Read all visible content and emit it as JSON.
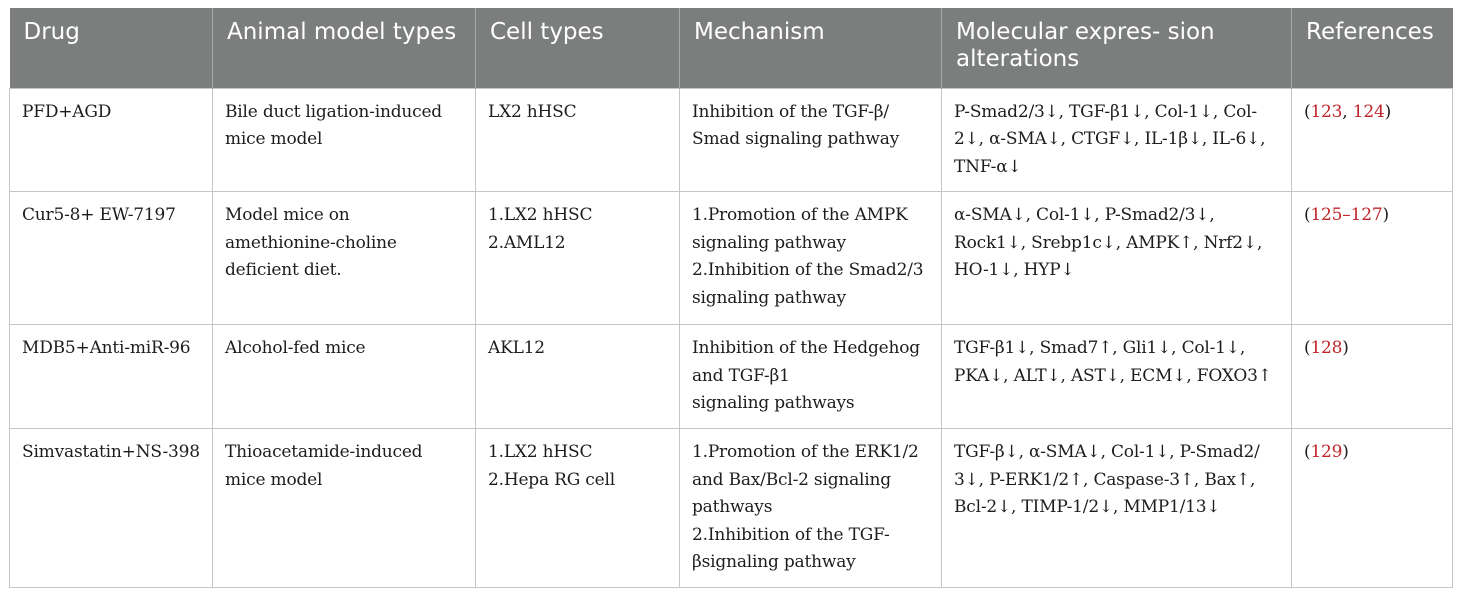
{
  "table": {
    "headers": [
      [
        "Drug"
      ],
      [
        "Animal",
        "model types"
      ],
      [
        "Cell types"
      ],
      [
        "Mechanism"
      ],
      [
        "Molecular expres-",
        "sion alterations"
      ],
      [
        "References"
      ]
    ],
    "rows": [
      {
        "drug": [
          "PFD+AGD"
        ],
        "animal": [
          "Bile duct ligation-induced",
          "mice model"
        ],
        "cell": [
          "LX2 hHSC"
        ],
        "mechanism": [
          "Inhibition of the TGF-β/",
          "Smad signaling pathway"
        ],
        "molecular": [
          "P-Smad2/3↓, TGF-β1↓, Col-1↓, Col-",
          "2↓, α-SMA↓, CTGF↓, IL-1β↓, IL-6↓,",
          "TNF-α↓"
        ],
        "refs": {
          "open": "(",
          "links": [
            "123",
            "124"
          ],
          "sep": ", ",
          "close": ")"
        }
      },
      {
        "drug": [
          "Cur5-8+ EW-7197"
        ],
        "animal": [
          "Model mice on",
          "amethionine-choline",
          "deficient diet."
        ],
        "cell": [
          "1.LX2 hHSC",
          "2.AML12"
        ],
        "mechanism": [
          "1.Promotion of the AMPK",
          "signaling pathway",
          "2.Inhibition of the Smad2/3",
          "signaling pathway"
        ],
        "molecular": [
          "α-SMA↓, Col-1↓, P-Smad2/3↓,",
          "Rock1↓, Srebp1c↓, AMPK↑, Nrf2↓,",
          "HO-1↓, HYP↓"
        ],
        "refs": {
          "open": "(",
          "links": [
            "125–127"
          ],
          "sep": "",
          "close": ")"
        }
      },
      {
        "drug": [
          "MDB5+Anti-miR-96"
        ],
        "animal": [
          "Alcohol-fed mice"
        ],
        "cell": [
          "AKL12"
        ],
        "mechanism": [
          "Inhibition of the Hedgehog",
          "and TGF-β1",
          "signaling pathways"
        ],
        "molecular": [
          "TGF-β1↓, Smad7↑, Gli1↓, Col-1↓,",
          "PKA↓, ALT↓, AST↓, ECM↓, FOXO3↑"
        ],
        "refs": {
          "open": "(",
          "links": [
            "128"
          ],
          "sep": "",
          "close": ")"
        }
      },
      {
        "drug": [
          "Simvastatin+NS-398"
        ],
        "animal": [
          "Thioacetamide-induced",
          "mice model"
        ],
        "cell": [
          "1.LX2 hHSC",
          "2.Hepa RG cell"
        ],
        "mechanism": [
          "1.Promotion of the ERK1/2",
          "and Bax/Bcl-2 signaling",
          "pathways",
          "2.Inhibition of the TGF-",
          "βsignaling pathway"
        ],
        "molecular": [
          "TGF-β↓, α-SMA↓, Col-1↓, P-Smad2/",
          "3↓, P-ERK1/2↑, Caspase-3↑, Bax↑,",
          "Bcl-2↓, TIMP-1/2↓, MMP1/13↓"
        ],
        "refs": {
          "open": "(",
          "links": [
            "129"
          ],
          "sep": "",
          "close": ")"
        }
      }
    ]
  },
  "colors": {
    "header_bg": "#7b7e7d",
    "header_text": "#ffffff",
    "reference_link": "#c0262c",
    "grid_line": "#c5c7c6"
  }
}
